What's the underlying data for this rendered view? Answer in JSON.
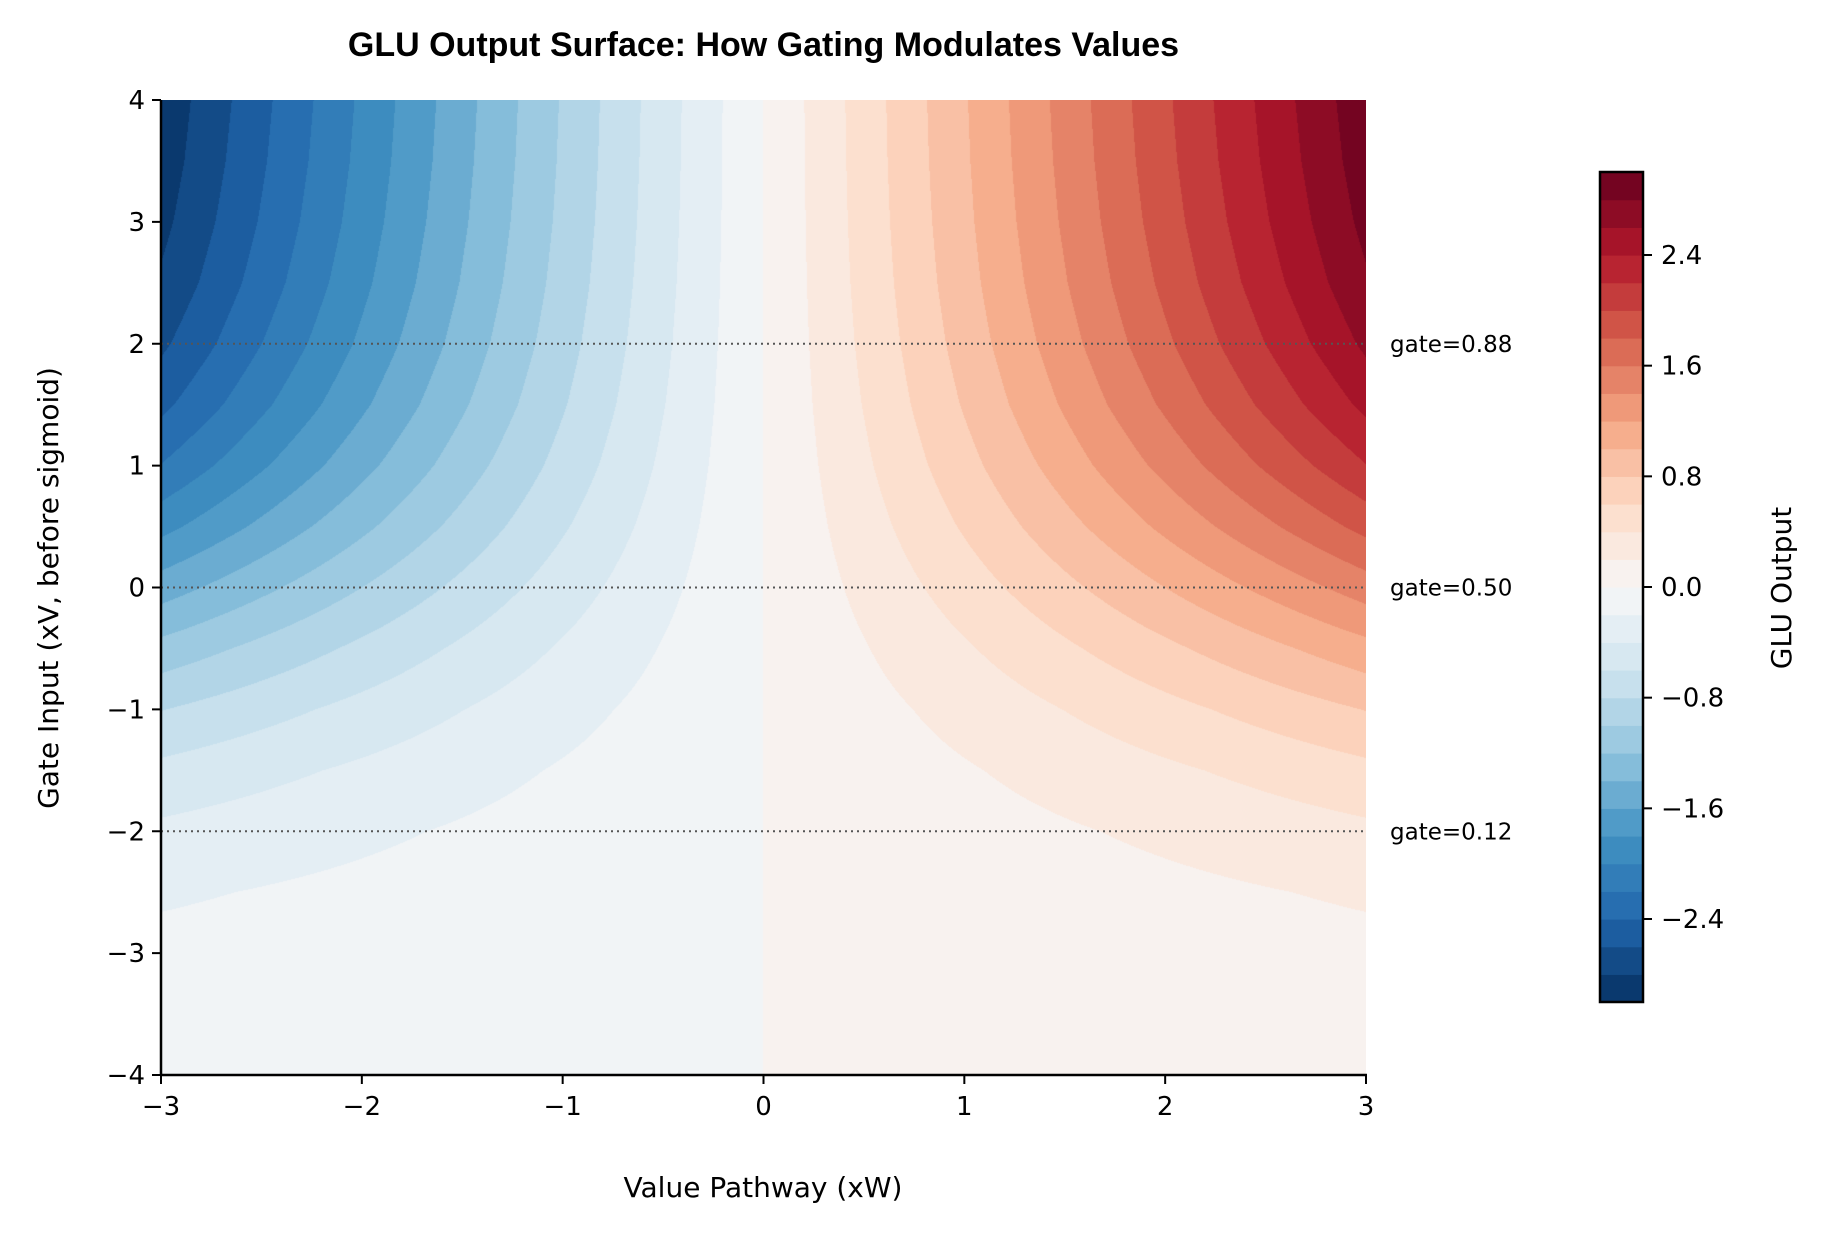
{
  "chart_data": {
    "type": "heatmap",
    "subtype": "filled-contour",
    "title": "GLU Output Surface: How Gating Modulates Values",
    "xlabel": "Value Pathway (xW)",
    "ylabel": "Gate Input (xV, before sigmoid)",
    "xlim": [
      -3,
      3
    ],
    "ylim": [
      -4,
      4
    ],
    "xticks": [
      "−3",
      "−2",
      "−1",
      "0",
      "1",
      "2",
      "3"
    ],
    "xtick_values": [
      -3,
      -2,
      -1,
      0,
      1,
      2,
      3
    ],
    "yticks": [
      "−4",
      "−3",
      "−2",
      "−1",
      "0",
      "1",
      "2",
      "3",
      "4"
    ],
    "ytick_values": [
      -4,
      -3,
      -2,
      -1,
      0,
      1,
      2,
      3,
      4
    ],
    "x": [
      -3,
      3
    ],
    "y": [
      -4,
      -3.5,
      -3,
      -2.5,
      -2,
      -1.5,
      -1,
      -0.5,
      0,
      0.5,
      1,
      1.5,
      2,
      2.5,
      3,
      3.5,
      4
    ],
    "z": [
      [
        -0.054,
        0.054
      ],
      [
        -0.087,
        0.087
      ],
      [
        -0.142,
        0.142
      ],
      [
        -0.228,
        0.228
      ],
      [
        -0.358,
        0.358
      ],
      [
        -0.547,
        0.547
      ],
      [
        -0.807,
        0.807
      ],
      [
        -1.133,
        1.133
      ],
      [
        -1.5,
        1.5
      ],
      [
        -1.867,
        1.867
      ],
      [
        -2.193,
        2.193
      ],
      [
        -2.453,
        2.453
      ],
      [
        -2.642,
        2.642
      ],
      [
        -2.773,
        2.773
      ],
      [
        -2.858,
        2.858
      ],
      [
        -2.913,
        2.913
      ],
      [
        -2.946,
        2.946
      ]
    ],
    "colormap": "RdBu_r",
    "levels": {
      "min": -3,
      "max": 3,
      "step": 0.2
    },
    "colorbar": {
      "label": "GLU Output",
      "ticks": [
        "−2.4",
        "−1.6",
        "−0.8",
        "0.0",
        "0.8",
        "1.6",
        "2.4"
      ],
      "tick_values": [
        -2.4,
        -1.6,
        -0.8,
        0,
        0.8,
        1.6,
        2.4
      ],
      "range": [
        -3,
        3
      ],
      "position": "right"
    },
    "reference_lines": [
      {
        "y": 2,
        "label": "gate=0.88"
      },
      {
        "y": 0,
        "label": "gate=0.50"
      },
      {
        "y": -2,
        "label": "gate=0.12"
      }
    ],
    "reference_line_color": "#555555",
    "grid": false
  }
}
